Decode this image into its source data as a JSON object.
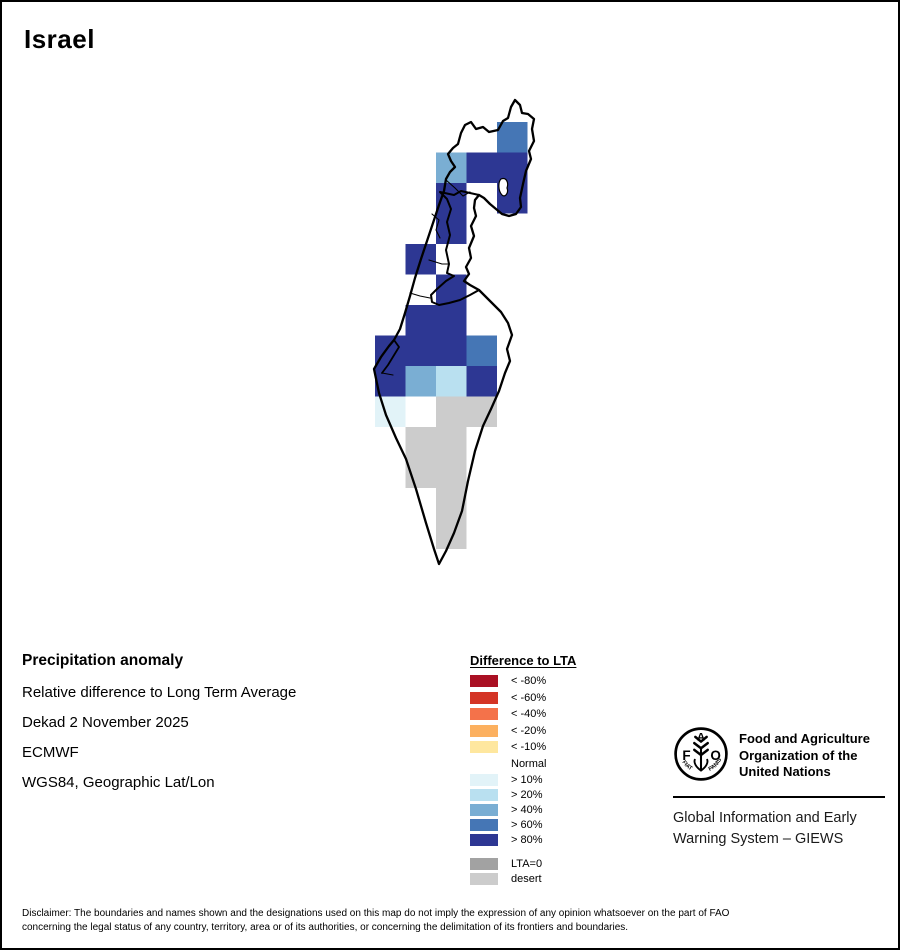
{
  "title": "Israel",
  "map": {
    "grid": {
      "note": "cells: c=column index from west, r=row index from north, v=legend key",
      "cells": [
        {
          "c": 4,
          "r": 1,
          "v": "pos60"
        },
        {
          "c": 2,
          "r": 2,
          "v": "pos40"
        },
        {
          "c": 3,
          "r": 2,
          "v": "pos80"
        },
        {
          "c": 4,
          "r": 2,
          "v": "pos80"
        },
        {
          "c": 2,
          "r": 3,
          "v": "pos80"
        },
        {
          "c": 4,
          "r": 3,
          "v": "pos80"
        },
        {
          "c": 2,
          "r": 4,
          "v": "pos80"
        },
        {
          "c": 1,
          "r": 5,
          "v": "pos80"
        },
        {
          "c": 2,
          "r": 6,
          "v": "pos80"
        },
        {
          "c": 1,
          "r": 7,
          "v": "pos80"
        },
        {
          "c": 2,
          "r": 7,
          "v": "pos80"
        },
        {
          "c": 0,
          "r": 8,
          "v": "pos80"
        },
        {
          "c": 1,
          "r": 8,
          "v": "pos80"
        },
        {
          "c": 2,
          "r": 8,
          "v": "pos80"
        },
        {
          "c": 3,
          "r": 8,
          "v": "pos60"
        },
        {
          "c": 0,
          "r": 9,
          "v": "pos80"
        },
        {
          "c": 1,
          "r": 9,
          "v": "pos40"
        },
        {
          "c": 2,
          "r": 9,
          "v": "pos20"
        },
        {
          "c": 3,
          "r": 9,
          "v": "pos80"
        },
        {
          "c": 0,
          "r": 10,
          "v": "pos10"
        },
        {
          "c": 1,
          "r": 10,
          "v": "normal"
        },
        {
          "c": 2,
          "r": 10,
          "v": "desert"
        },
        {
          "c": 3,
          "r": 10,
          "v": "desert"
        },
        {
          "c": 1,
          "r": 11,
          "v": "desert"
        },
        {
          "c": 2,
          "r": 11,
          "v": "desert"
        },
        {
          "c": 1,
          "r": 12,
          "v": "desert"
        },
        {
          "c": 2,
          "r": 12,
          "v": "desert"
        },
        {
          "c": 2,
          "r": 13,
          "v": "desert"
        },
        {
          "c": 2,
          "r": 14,
          "v": "desert"
        }
      ]
    },
    "legend": {
      "title": "Difference to LTA",
      "items": [
        {
          "key": "neg80",
          "label": "< -80%",
          "color": "#aa1023"
        },
        {
          "key": "neg60",
          "label": "< -60%",
          "color": "#d43425"
        },
        {
          "key": "neg40",
          "label": "< -40%",
          "color": "#f4724a"
        },
        {
          "key": "neg20",
          "label": "< -20%",
          "color": "#fcb05f"
        },
        {
          "key": "neg10",
          "label": "< -10%",
          "color": "#fee79f"
        },
        {
          "key": "normal",
          "label": "Normal",
          "color": ""
        },
        {
          "key": "pos10",
          "label": "> 10%",
          "color": "#e2f3f8"
        },
        {
          "key": "pos20",
          "label": "> 20%",
          "color": "#b9e0f0"
        },
        {
          "key": "pos40",
          "label": "> 40%",
          "color": "#7aaed3"
        },
        {
          "key": "pos60",
          "label": "> 60%",
          "color": "#4576b5"
        },
        {
          "key": "pos80",
          "label": "> 80%",
          "color": "#2d3793"
        }
      ],
      "extra_items": [
        {
          "key": "lta0",
          "label": "LTA=0",
          "color": "#a2a2a2"
        },
        {
          "key": "desert",
          "label": "desert",
          "color": "#cccccc"
        }
      ]
    }
  },
  "info": {
    "heading": "Precipitation anomaly",
    "lines": [
      "Relative difference to Long Term Average",
      "Dekad 2 November 2025",
      "ECMWF",
      "WGS84, Geographic Lat/Lon"
    ]
  },
  "fao": {
    "org_lines": [
      "Food and Agriculture",
      "Organization of the",
      "United Nations"
    ],
    "giews_lines": [
      "Global Information and Early",
      "Warning System – GIEWS"
    ],
    "logo": {
      "f": "F",
      "a": "A",
      "o": "O",
      "motto_left": "FIAT",
      "motto_right": "PANIS"
    }
  },
  "disclaimer": {
    "lines": [
      "Disclaimer: The boundaries and names shown and the designations used on this map do not imply the expression of any opinion whatsoever on the part of FAO",
      "concerning the legal status of any country, territory, area or of its authorities, or concerning the delimitation of its frontiers and boundaries."
    ]
  }
}
